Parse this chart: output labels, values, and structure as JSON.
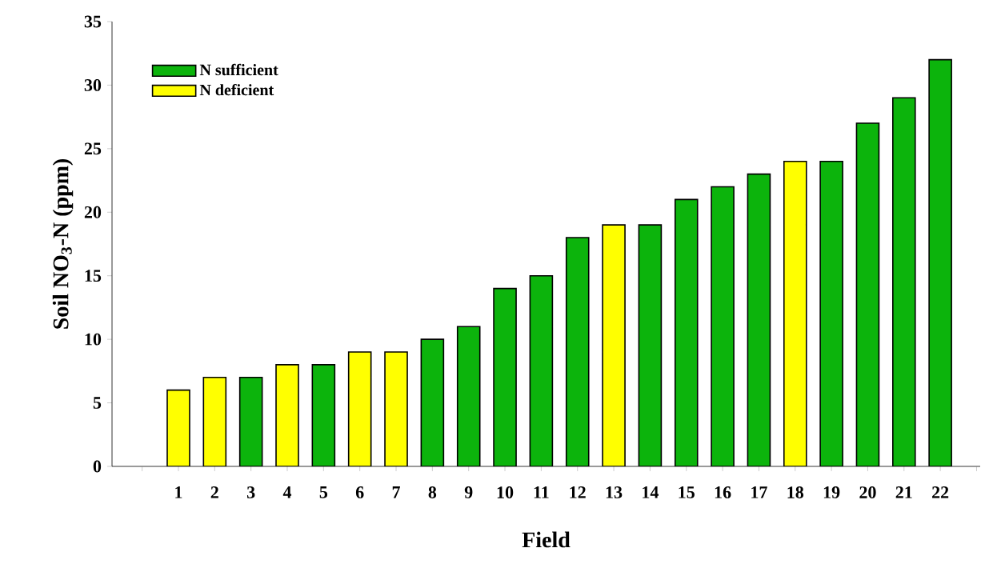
{
  "chart_data": {
    "type": "bar",
    "xlabel": "Field",
    "ylabel": "Soil NO$_{3}$-N (ppm)",
    "categories": [
      "1",
      "2",
      "3",
      "4",
      "5",
      "6",
      "7",
      "8",
      "9",
      "10",
      "11",
      "12",
      "13",
      "14",
      "15",
      "16",
      "17",
      "18",
      "19",
      "20",
      "21",
      "22"
    ],
    "series": [
      {
        "name": "N sufficient",
        "color": "#0cb40c",
        "values": [
          null,
          null,
          7,
          null,
          8,
          null,
          null,
          10,
          11,
          14,
          15,
          18,
          null,
          19,
          21,
          22,
          23,
          null,
          24,
          27,
          29,
          32
        ]
      },
      {
        "name": "N deficient",
        "color": "#ffff00",
        "values": [
          6,
          7,
          null,
          8,
          null,
          9,
          9,
          null,
          null,
          null,
          null,
          null,
          19,
          null,
          null,
          null,
          null,
          24,
          null,
          null,
          null,
          null
        ]
      }
    ],
    "ylim": [
      0,
      35
    ],
    "yticks": [
      0,
      5,
      10,
      15,
      20,
      25,
      30,
      35
    ],
    "grid": false,
    "legend": "top left"
  }
}
